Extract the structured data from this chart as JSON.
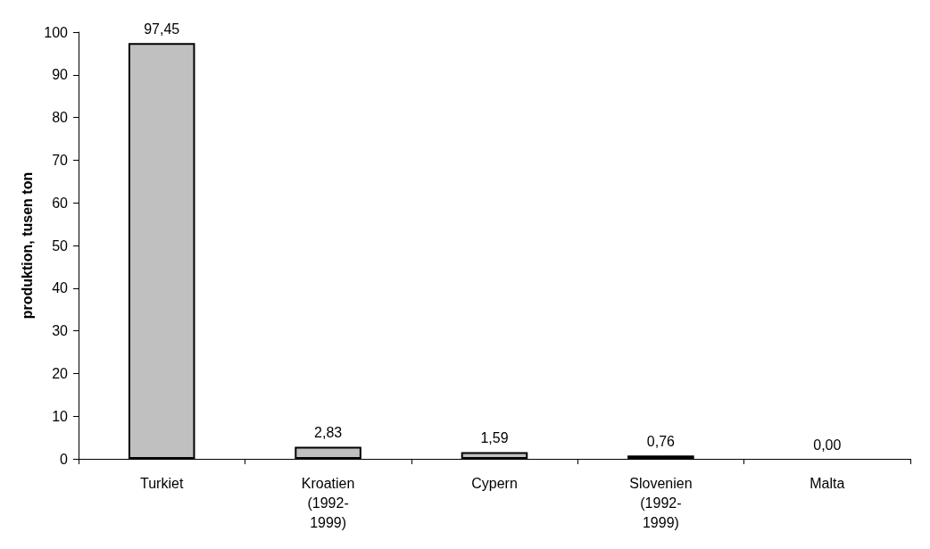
{
  "chart_data": {
    "type": "bar",
    "ylabel": "produktion, tusen ton",
    "categories": [
      "Turkiet",
      "Kroatien (1992-1999)",
      "Cypern",
      "Slovenien (1992-1999)",
      "Malta"
    ],
    "values": [
      97.45,
      2.83,
      1.59,
      0.76,
      0.0
    ],
    "value_labels": [
      "97,45",
      "2,83",
      "1,59",
      "0,76",
      "0,00"
    ],
    "color": "#c0c0c0",
    "ylim": [
      0,
      100
    ],
    "yticks": [
      0,
      10,
      20,
      30,
      40,
      50,
      60,
      70,
      80,
      90,
      100
    ],
    "grid": false
  }
}
